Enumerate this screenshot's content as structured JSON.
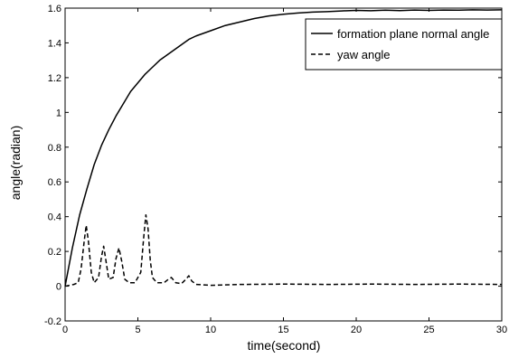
{
  "chart_data": {
    "type": "line",
    "xlabel": "time(second)",
    "ylabel": "angle(radian)",
    "xlim": [
      0,
      30
    ],
    "ylim": [
      -0.2,
      1.6
    ],
    "xticks": [
      0,
      5,
      10,
      15,
      20,
      25,
      30
    ],
    "yticks": [
      -0.2,
      0,
      0.2,
      0.4,
      0.6,
      0.8,
      1,
      1.2,
      1.4,
      1.6
    ],
    "xtick_labels": [
      "0",
      "5",
      "10",
      "15",
      "20",
      "25",
      "30"
    ],
    "ytick_labels": [
      "-0.2",
      "0",
      "0.2",
      "0.4",
      "0.6",
      "0.8",
      "1",
      "1.2",
      "1.4",
      "1.6"
    ],
    "grid": false,
    "legend_position": "top-right",
    "series": [
      {
        "name": "formation plane normal angle",
        "style": "solid",
        "color": "#000000",
        "x": [
          0,
          0.5,
          1,
          1.5,
          2,
          2.5,
          3,
          3.5,
          4,
          4.5,
          5,
          5.5,
          6,
          6.5,
          7,
          7.5,
          8,
          8.5,
          9,
          9.5,
          10,
          11,
          12,
          13,
          14,
          15,
          16,
          17,
          18,
          19,
          20,
          21,
          22,
          23,
          24,
          25,
          26,
          27,
          28,
          29,
          30
        ],
        "y": [
          0,
          0.22,
          0.41,
          0.56,
          0.7,
          0.81,
          0.9,
          0.98,
          1.05,
          1.12,
          1.17,
          1.22,
          1.26,
          1.3,
          1.33,
          1.36,
          1.39,
          1.42,
          1.44,
          1.455,
          1.47,
          1.5,
          1.52,
          1.54,
          1.555,
          1.565,
          1.572,
          1.577,
          1.58,
          1.584,
          1.587,
          1.585,
          1.588,
          1.586,
          1.589,
          1.587,
          1.589,
          1.588,
          1.59,
          1.589,
          1.59
        ]
      },
      {
        "name": "yaw angle",
        "style": "dashed",
        "color": "#000000",
        "x": [
          0,
          0.6,
          0.9,
          1.1,
          1.3,
          1.45,
          1.6,
          1.8,
          2.0,
          2.3,
          2.5,
          2.65,
          2.8,
          3.0,
          3.3,
          3.5,
          3.7,
          3.9,
          4.1,
          4.4,
          4.8,
          5.2,
          5.4,
          5.55,
          5.7,
          5.85,
          6.0,
          6.3,
          6.8,
          7.1,
          7.3,
          7.6,
          8.0,
          8.3,
          8.5,
          8.7,
          9.0,
          10,
          12,
          15,
          18,
          21,
          24,
          27,
          30
        ],
        "y": [
          0,
          0.01,
          0.02,
          0.1,
          0.25,
          0.35,
          0.26,
          0.08,
          0.02,
          0.05,
          0.17,
          0.23,
          0.15,
          0.04,
          0.05,
          0.16,
          0.22,
          0.14,
          0.04,
          0.02,
          0.02,
          0.08,
          0.28,
          0.41,
          0.33,
          0.15,
          0.05,
          0.02,
          0.02,
          0.04,
          0.05,
          0.02,
          0.015,
          0.04,
          0.06,
          0.03,
          0.01,
          0.005,
          0.01,
          0.012,
          0.01,
          0.012,
          0.01,
          0.012,
          0.01
        ]
      }
    ]
  }
}
